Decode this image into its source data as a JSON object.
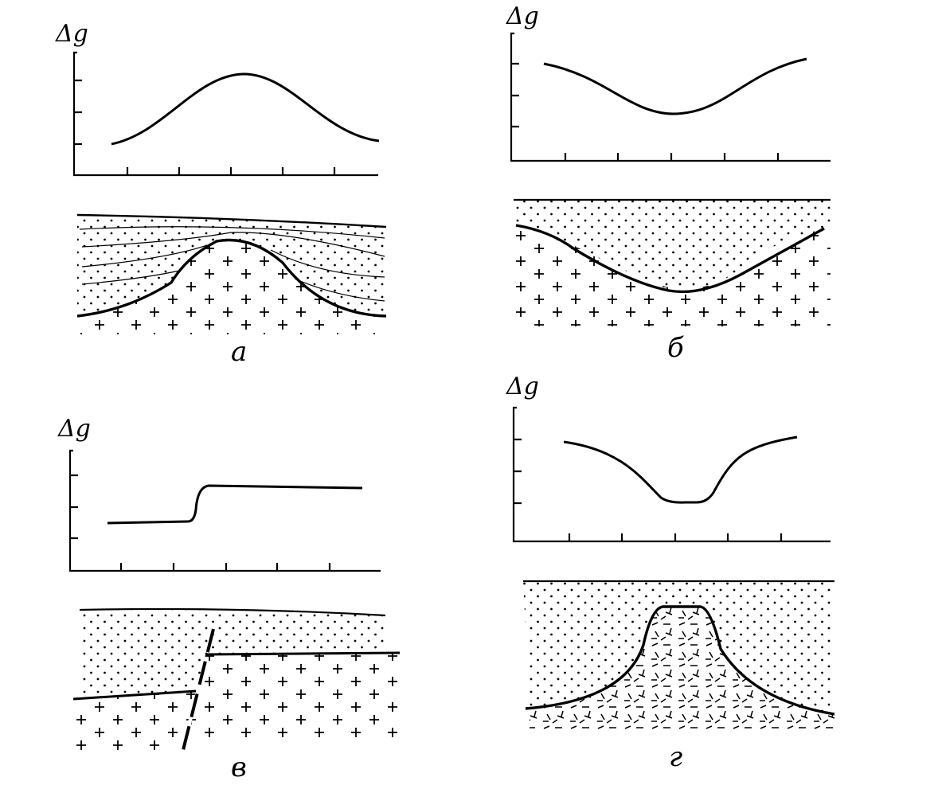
{
  "panels": [
    {
      "id": "a",
      "axis_label": "Δg",
      "caption": "а",
      "description_type": "anticline"
    },
    {
      "id": "b",
      "axis_label": "Δg",
      "caption": "б",
      "description_type": "syncline"
    },
    {
      "id": "v",
      "axis_label": "Δg",
      "caption": "в",
      "description_type": "fault"
    },
    {
      "id": "g",
      "axis_label": "Δg",
      "caption": "г",
      "description_type": "low-density intrusion"
    }
  ],
  "colors": {
    "ink": "#000000",
    "background": "#ffffff"
  },
  "pattern_names": [
    "dots-sediment",
    "plus-crystalline",
    "dash-intrusive"
  ]
}
